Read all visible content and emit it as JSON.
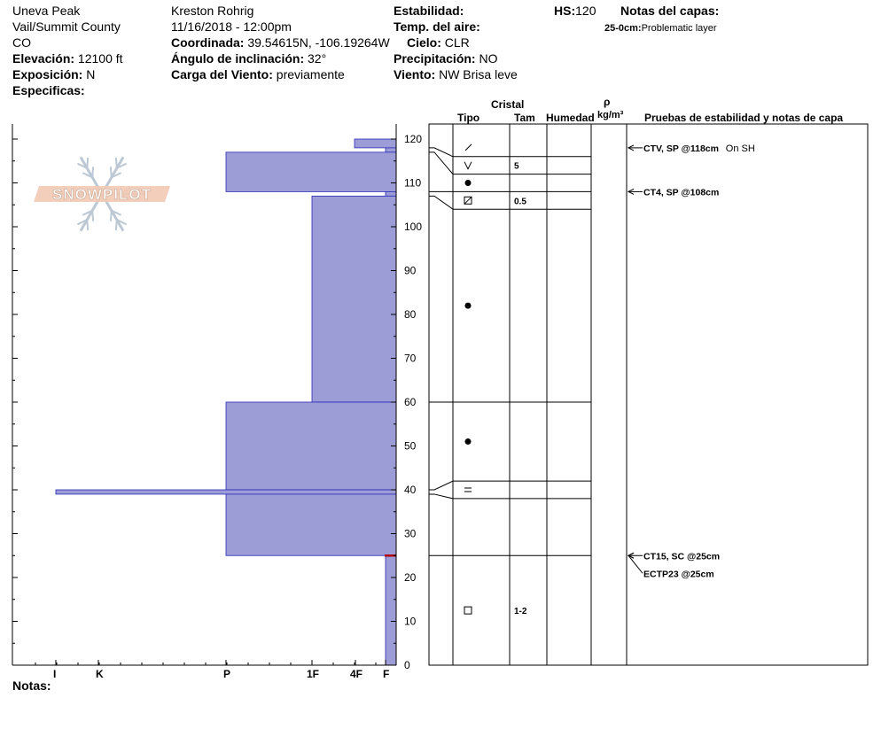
{
  "header": {
    "location": "Uneva Peak",
    "region": "Vail/Summit County",
    "state": "CO",
    "elevation_label": "Elevación:",
    "elevation_value": "12100 ft",
    "aspect_label": "Exposición:",
    "aspect_value": "N",
    "specifics_label": "Especificas:",
    "observer": "Kreston Rohrig",
    "datetime": "11/16/2018 - 12:00pm",
    "coord_label": "Coordinada:",
    "coord_value": "39.54615N, -106.19264W",
    "slope_label": "Ángulo de inclinación:",
    "slope_value": "32°",
    "wind_load_label": "Carga del Viento:",
    "wind_load_value": "previamente",
    "stability_label": "Estabilidad:",
    "air_temp_label": "Temp. del aire:",
    "sky_label": "Cielo:",
    "sky_value": "CLR",
    "precip_label": "Precipitación:",
    "precip_value": "NO",
    "wind_label": "Viento:",
    "wind_value": "NW Brisa leve",
    "hs_label": "HS:",
    "hs_value": "120",
    "layer_notes_label": "Notas del capas:",
    "layer_note_depth": "25-0cm:",
    "layer_note_text": "Problematic layer"
  },
  "notes_label": "Notas:",
  "logo_text": "SNOWPILOT",
  "columns": {
    "crystal": "Cristal",
    "type": "Tipo",
    "size": "Tam",
    "humidity": "Humedad",
    "rho": "ρ",
    "density_unit": "kg/m³",
    "tests": "Pruebas de estabilidad y notas de capa"
  },
  "colors": {
    "hardness_fill": "#9c9cd6",
    "hardness_stroke": "#2a2ab8",
    "problem_marker": "#b00000"
  },
  "chart_data": {
    "type": "bar",
    "hardness_scale": [
      "I",
      "K",
      "P",
      "1F",
      "4F",
      "F"
    ],
    "y_axis": {
      "range": [
        0,
        120
      ],
      "ticks": [
        0,
        10,
        20,
        30,
        40,
        50,
        60,
        70,
        80,
        90,
        100,
        110,
        120
      ]
    },
    "layers": [
      {
        "top": 120,
        "bottom": 118,
        "hardness": "4F+"
      },
      {
        "top": 118,
        "bottom": 117,
        "hardness": "F"
      },
      {
        "top": 117,
        "bottom": 108,
        "hardness": "P"
      },
      {
        "top": 108,
        "bottom": 107,
        "hardness": "F"
      },
      {
        "top": 107,
        "bottom": 60,
        "hardness": "1F"
      },
      {
        "top": 60,
        "bottom": 40,
        "hardness": "P"
      },
      {
        "top": 40,
        "bottom": 39,
        "hardness": "I"
      },
      {
        "top": 39,
        "bottom": 25,
        "hardness": "P"
      },
      {
        "top": 25,
        "bottom": 0,
        "hardness": "F"
      }
    ],
    "problem_layer_depth": 25,
    "crystal_rows": [
      {
        "top": 120,
        "bottom": 116,
        "center": 118,
        "symbol": "precip-particles-icon",
        "size": ""
      },
      {
        "top": 116,
        "bottom": 112,
        "center": 114,
        "symbol": "surface-hoar-icon",
        "size": "5"
      },
      {
        "top": 112,
        "bottom": 108,
        "center": 110,
        "symbol": "rounded-grains-icon",
        "size": ""
      },
      {
        "top": 108,
        "bottom": 104,
        "center": 106,
        "symbol": "mixed-faceted-icon",
        "size": "0.5"
      },
      {
        "top": 104,
        "bottom": 60,
        "center": 82,
        "symbol": "rounded-grains-icon",
        "size": ""
      },
      {
        "top": 60,
        "bottom": 42,
        "center": 51,
        "symbol": "rounded-grains-icon",
        "size": ""
      },
      {
        "top": 42,
        "bottom": 38,
        "center": 40,
        "symbol": "melt-freeze-crust-icon",
        "size": ""
      },
      {
        "top": 38,
        "bottom": 25,
        "center": 31.5,
        "symbol": "",
        "size": ""
      },
      {
        "top": 25,
        "bottom": 0,
        "center": 12.5,
        "symbol": "faceted-icon",
        "size": "1-2"
      }
    ],
    "stability_tests": [
      {
        "depth": 118,
        "label": "CTV, SP @118cm",
        "note": "On SH"
      },
      {
        "depth": 108,
        "label": "CT4, SP @108cm",
        "note": ""
      },
      {
        "depth": 25,
        "label": "CT15, SC @25cm",
        "note": ""
      },
      {
        "depth": 25,
        "label": "ECTP23 @25cm",
        "note": ""
      }
    ]
  }
}
